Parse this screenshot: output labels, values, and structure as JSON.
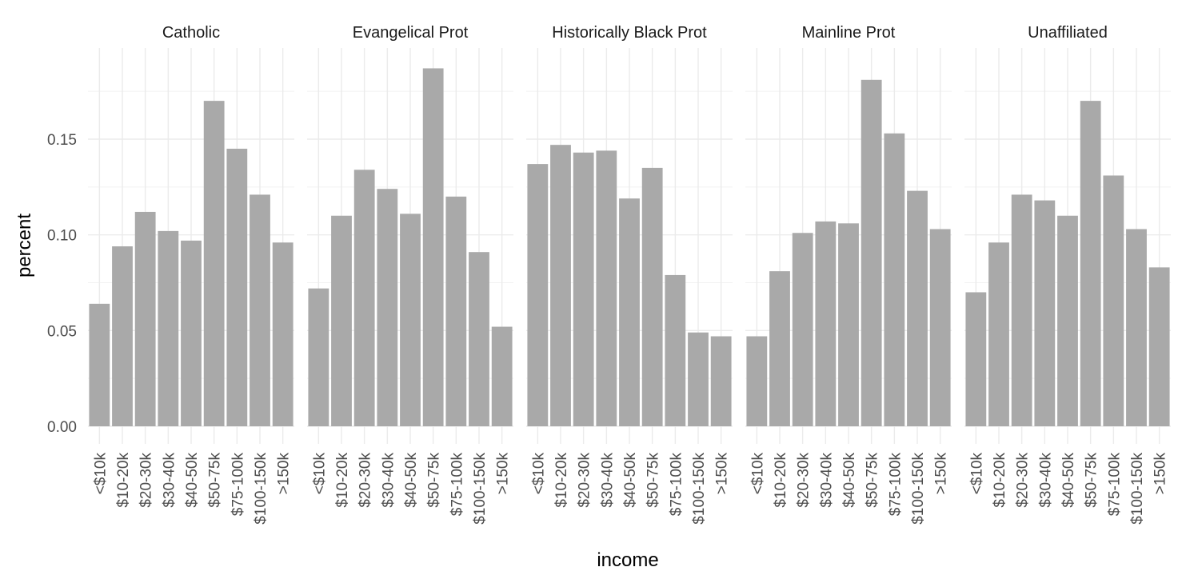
{
  "chart_data": {
    "type": "bar",
    "facet_by": "religion",
    "xlabel": "income",
    "ylabel": "percent",
    "ylim": [
      0,
      0.19
    ],
    "yticks": [
      0.0,
      0.05,
      0.1,
      0.15
    ],
    "ytick_labels": [
      "0.00",
      "0.05",
      "0.10",
      "0.15"
    ],
    "grid": true,
    "bar_color": "#a9a9a9",
    "categories": [
      "<$10k",
      "$10-20k",
      "$20-30k",
      "$30-40k",
      "$40-50k",
      "$50-75k",
      "$75-100k",
      "$100-150k",
      ">150k"
    ],
    "panels": [
      {
        "title": "Catholic",
        "values": [
          0.064,
          0.094,
          0.112,
          0.102,
          0.097,
          0.17,
          0.145,
          0.121,
          0.096
        ]
      },
      {
        "title": "Evangelical Prot",
        "values": [
          0.072,
          0.11,
          0.134,
          0.124,
          0.111,
          0.187,
          0.12,
          0.091,
          0.052
        ]
      },
      {
        "title": "Historically Black Prot",
        "values": [
          0.137,
          0.147,
          0.143,
          0.144,
          0.119,
          0.135,
          0.079,
          0.049,
          0.047
        ]
      },
      {
        "title": "Mainline Prot",
        "values": [
          0.047,
          0.081,
          0.101,
          0.107,
          0.106,
          0.181,
          0.153,
          0.123,
          0.103
        ]
      },
      {
        "title": "Unaffiliated",
        "values": [
          0.07,
          0.096,
          0.121,
          0.118,
          0.11,
          0.17,
          0.131,
          0.103,
          0.083
        ]
      }
    ]
  }
}
